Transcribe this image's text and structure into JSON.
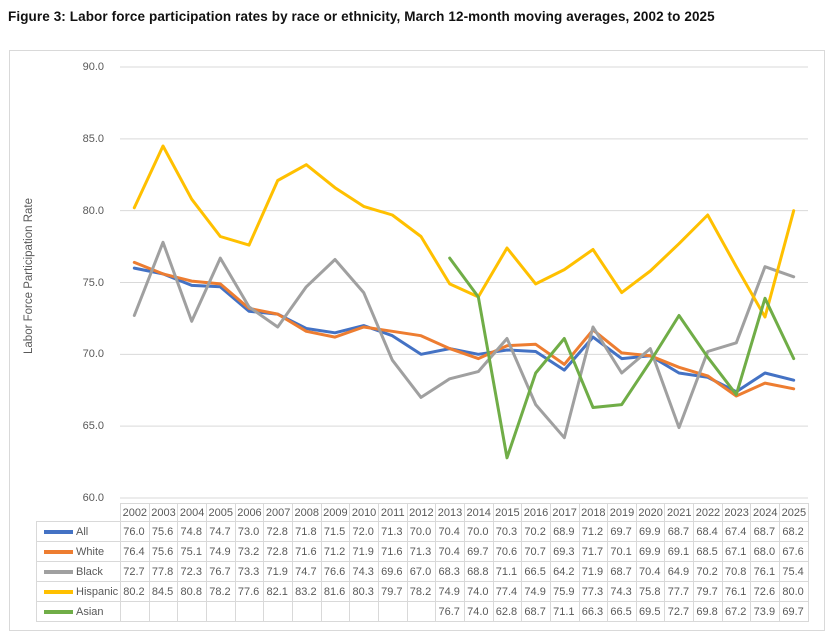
{
  "chart_data": {
    "type": "line",
    "title": "Figure 3: Labor force participation rates by race or ethnicity, March 12-month moving averages, 2002 to 2025",
    "xlabel": "",
    "ylabel": "Labor Force Participation Rate",
    "ylim": [
      60,
      90
    ],
    "yticks": [
      "90.0",
      "85.0",
      "80.0",
      "75.0",
      "70.0",
      "65.0",
      "60.0"
    ],
    "grid": true,
    "legend_position": "data-table-left-column",
    "categories": [
      "2002",
      "2003",
      "2004",
      "2005",
      "2006",
      "2007",
      "2008",
      "2009",
      "2010",
      "2011",
      "2012",
      "2013",
      "2014",
      "2015",
      "2016",
      "2017",
      "2018",
      "2019",
      "2020",
      "2021",
      "2022",
      "2023",
      "2024",
      "2025"
    ],
    "series": [
      {
        "name": "All",
        "color": "#4472C4",
        "values": [
          76.0,
          75.6,
          74.8,
          74.7,
          73.0,
          72.8,
          71.8,
          71.5,
          72.0,
          71.3,
          70.0,
          70.4,
          70.0,
          70.3,
          70.2,
          68.9,
          71.2,
          69.7,
          69.9,
          68.7,
          68.4,
          67.4,
          68.7,
          68.2
        ]
      },
      {
        "name": "White",
        "color": "#ED7D31",
        "values": [
          76.4,
          75.6,
          75.1,
          74.9,
          73.2,
          72.8,
          71.6,
          71.2,
          71.9,
          71.6,
          71.3,
          70.4,
          69.7,
          70.6,
          70.7,
          69.3,
          71.7,
          70.1,
          69.9,
          69.1,
          68.5,
          67.1,
          68.0,
          67.6
        ]
      },
      {
        "name": "Black",
        "color": "#A0A0A0",
        "values": [
          72.7,
          77.8,
          72.3,
          76.7,
          73.3,
          71.9,
          74.7,
          76.6,
          74.3,
          69.6,
          67.0,
          68.3,
          68.8,
          71.1,
          66.5,
          64.2,
          71.9,
          68.7,
          70.4,
          64.9,
          70.2,
          70.8,
          76.1,
          75.4
        ]
      },
      {
        "name": "Hispanic",
        "color": "#FFC000",
        "values": [
          80.2,
          84.5,
          80.8,
          78.2,
          77.6,
          82.1,
          83.2,
          81.6,
          80.3,
          79.7,
          78.2,
          74.9,
          74.0,
          77.4,
          74.9,
          75.9,
          77.3,
          74.3,
          75.8,
          77.7,
          79.7,
          76.1,
          72.6,
          80.0
        ]
      },
      {
        "name": "Asian",
        "color": "#70AD47",
        "values": [
          null,
          null,
          null,
          null,
          null,
          null,
          null,
          null,
          null,
          null,
          null,
          76.7,
          74.0,
          62.8,
          68.7,
          71.1,
          66.3,
          66.5,
          69.5,
          72.7,
          69.8,
          67.2,
          73.9,
          69.7
        ]
      }
    ]
  }
}
